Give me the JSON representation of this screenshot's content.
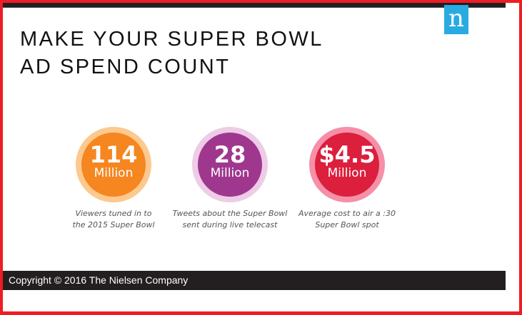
{
  "title_line1": "MAKE YOUR SUPER BOWL",
  "title_line2": "AD SPEND COUNT",
  "logo": "n",
  "stats": [
    {
      "value": "114",
      "unit": "Million",
      "caption1": "Viewers tuned in to",
      "caption2": "the 2015 Super Bowl",
      "color": "#f58620",
      "ring": "#fdc98f"
    },
    {
      "value": "28",
      "unit": "Million",
      "caption1": "Tweets about the Super Bowl",
      "caption2": "sent during live telecast",
      "color": "#a0378f",
      "ring": "#edcde6"
    },
    {
      "value": "$4.5",
      "unit": "Million",
      "caption1": "Average cost to air a :30",
      "caption2": "Super Bowl spot",
      "color": "#dc1f3c",
      "ring": "#f590a8"
    }
  ],
  "footer": "Copyright © 2016 The Nielsen Company"
}
